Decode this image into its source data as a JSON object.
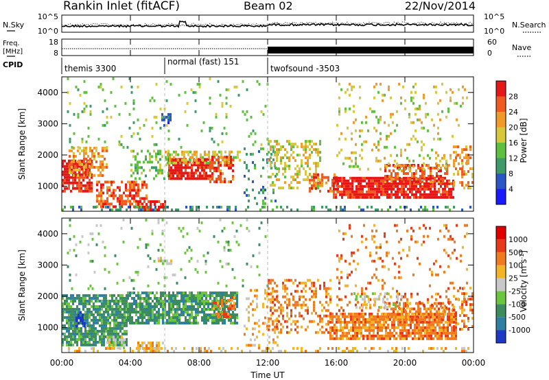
{
  "header": {
    "station": "Rankin Inlet (fitACF)",
    "beam": "Beam 02",
    "date": "22/Nov/2014"
  },
  "noise_panel": {
    "left_label": "N.Sky",
    "right_label": "N.Search",
    "left_ticks": [
      "10^5",
      "10^0"
    ],
    "right_ticks": [
      "10^5",
      "10^0"
    ]
  },
  "freq_panel": {
    "left_label_1": "Freq.",
    "left_label_2": "[MHz]",
    "right_label": "Nave",
    "left_ticks": [
      "18",
      "8"
    ],
    "right_ticks": [
      "60",
      "0"
    ]
  },
  "cpid_panel": {
    "label": "CPID",
    "segments": [
      {
        "name": "themis 3300",
        "start_hour": 0,
        "end_hour": 6
      },
      {
        "name": "normal (fast) 151",
        "start_hour": 6,
        "end_hour": 12
      },
      {
        "name": "twofsound -3503",
        "start_hour": 12,
        "end_hour": 24
      }
    ]
  },
  "x_axis": {
    "label": "Time UT",
    "ticks": [
      "00:00",
      "04:00",
      "08:00",
      "12:00",
      "16:00",
      "20:00",
      "00:00"
    ]
  },
  "chart_data": [
    {
      "type": "heatmap",
      "name": "power",
      "ylabel": "Slant Range [km]",
      "yticks": [
        1000,
        2000,
        3000,
        4000
      ],
      "ylim": [
        200,
        4500
      ],
      "xlim_hours": [
        0,
        24
      ],
      "colorbar": {
        "label": "Power [dB]",
        "ticks": [
          "4",
          "8",
          "12",
          "16",
          "20",
          "24",
          "28"
        ],
        "colors": [
          "#1a1aff",
          "#2b56c8",
          "#3f9a6a",
          "#5fbf3f",
          "#d6c83a",
          "#f09a2a",
          "#ee5a20",
          "#e41818"
        ]
      },
      "regions": [
        {
          "t0": 0.0,
          "t1": 1.8,
          "r0": 800,
          "r1": 1800,
          "level": 7,
          "density": 0.8
        },
        {
          "t0": 0.4,
          "t1": 2.6,
          "r0": 1300,
          "r1": 2200,
          "level": 5,
          "density": 0.5
        },
        {
          "t0": 2.0,
          "t1": 5.0,
          "r0": 300,
          "r1": 1100,
          "level": 6,
          "density": 0.6
        },
        {
          "t0": 4.4,
          "t1": 6.0,
          "r0": 200,
          "r1": 500,
          "level": 7,
          "density": 0.7
        },
        {
          "t0": 4.0,
          "t1": 6.2,
          "r0": 1200,
          "r1": 2100,
          "level": 3,
          "density": 0.35
        },
        {
          "t0": 6.2,
          "t1": 8.6,
          "r0": 1200,
          "r1": 1900,
          "level": 7,
          "density": 0.8
        },
        {
          "t0": 6.0,
          "t1": 10.4,
          "r0": 1700,
          "r1": 2100,
          "level": 4,
          "density": 0.55
        },
        {
          "t0": 8.6,
          "t1": 10.0,
          "r0": 1100,
          "r1": 1900,
          "level": 6,
          "density": 0.6
        },
        {
          "t0": 5.8,
          "t1": 6.4,
          "r0": 2900,
          "r1": 3300,
          "level": 1,
          "density": 0.6
        },
        {
          "t0": 10.6,
          "t1": 12.6,
          "r0": 400,
          "r1": 2200,
          "level": 2,
          "density": 0.15
        },
        {
          "t0": 12.0,
          "t1": 15.0,
          "r0": 900,
          "r1": 2400,
          "level": 4,
          "density": 0.35
        },
        {
          "t0": 14.4,
          "t1": 16.0,
          "r0": 800,
          "r1": 1400,
          "level": 6,
          "density": 0.6
        },
        {
          "t0": 15.8,
          "t1": 22.8,
          "r0": 600,
          "r1": 1300,
          "level": 7,
          "density": 0.85
        },
        {
          "t0": 18.8,
          "t1": 22.6,
          "r0": 1100,
          "r1": 1700,
          "level": 6,
          "density": 0.55
        },
        {
          "t0": 16.0,
          "t1": 23.6,
          "r0": 1500,
          "r1": 4300,
          "level": 4,
          "density": 0.12
        },
        {
          "t0": 22.8,
          "t1": 24.0,
          "r0": 900,
          "r1": 2300,
          "level": 5,
          "density": 0.4
        },
        {
          "t0": 0.0,
          "t1": 24.0,
          "r0": 200,
          "r1": 300,
          "level": 2,
          "density": 0.3
        },
        {
          "t0": 0.3,
          "t1": 12.0,
          "r0": 2200,
          "r1": 4400,
          "level": 3,
          "density": 0.05
        }
      ]
    },
    {
      "type": "heatmap",
      "name": "velocity",
      "ylabel": "Slant Range [km]",
      "yticks": [
        1000,
        2000,
        3000,
        4000
      ],
      "ylim": [
        200,
        4500
      ],
      "xlim_hours": [
        0,
        24
      ],
      "colorbar": {
        "label": "Velocity [m s^-1]",
        "ticks": [
          "1000",
          "500",
          "100",
          "25",
          "-25",
          "-100",
          "-500",
          "-1000"
        ],
        "colors": [
          "#1c38c4",
          "#2e7fa0",
          "#3c8c5e",
          "#6cc53e",
          "#c8c8c8",
          "#f4b428",
          "#f07a20",
          "#e83a18",
          "#e00000"
        ]
      },
      "regions": [
        {
          "t0": 0.0,
          "t1": 3.8,
          "r0": 400,
          "r1": 2000,
          "level": 2,
          "density": 0.8
        },
        {
          "t0": 2.6,
          "t1": 3.6,
          "r0": 300,
          "r1": 700,
          "level": 4,
          "density": 0.6
        },
        {
          "t0": 4.4,
          "t1": 6.0,
          "r0": 200,
          "r1": 500,
          "level": 5,
          "density": 0.6
        },
        {
          "t0": 3.8,
          "t1": 10.2,
          "r0": 1100,
          "r1": 2100,
          "level": 2,
          "density": 0.8
        },
        {
          "t0": 5.6,
          "t1": 6.4,
          "r0": 3000,
          "r1": 3200,
          "level": 4,
          "density": 0.7
        },
        {
          "t0": 0.8,
          "t1": 1.4,
          "r0": 1000,
          "r1": 1500,
          "level": 0,
          "density": 0.5
        },
        {
          "t0": 8.8,
          "t1": 10.0,
          "r0": 1300,
          "r1": 2000,
          "level": 6,
          "density": 0.4
        },
        {
          "t0": 10.6,
          "t1": 12.6,
          "r0": 300,
          "r1": 2200,
          "level": 5,
          "density": 0.15
        },
        {
          "t0": 12.0,
          "t1": 15.6,
          "r0": 800,
          "r1": 2500,
          "level": 6,
          "density": 0.35
        },
        {
          "t0": 15.6,
          "t1": 23.0,
          "r0": 600,
          "r1": 1400,
          "level": 6,
          "density": 0.8
        },
        {
          "t0": 18.8,
          "t1": 22.8,
          "r0": 1200,
          "r1": 1800,
          "level": 6,
          "density": 0.5
        },
        {
          "t0": 16.0,
          "t1": 23.6,
          "r0": 1500,
          "r1": 4300,
          "level": 6,
          "density": 0.12
        },
        {
          "t0": 22.8,
          "t1": 24.0,
          "r0": 900,
          "r1": 2300,
          "level": 6,
          "density": 0.35
        },
        {
          "t0": 17.0,
          "t1": 20.0,
          "r0": 1600,
          "r1": 2100,
          "level": 4,
          "density": 0.25
        },
        {
          "t0": 0.0,
          "t1": 24.0,
          "r0": 200,
          "r1": 300,
          "level": 5,
          "density": 0.25
        },
        {
          "t0": 0.3,
          "t1": 12.0,
          "r0": 2200,
          "r1": 4400,
          "level": 3,
          "density": 0.05
        }
      ]
    }
  ]
}
